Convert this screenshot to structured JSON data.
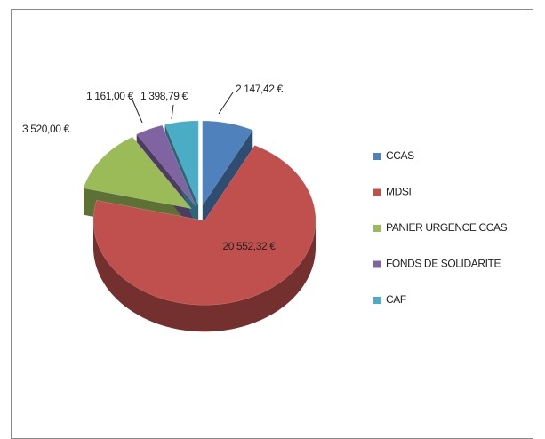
{
  "chart_data": {
    "type": "pie",
    "categories": [
      "CCAS",
      "MDSI",
      "PANIER URGENCE CCAS",
      "FONDS DE SOLIDARITE",
      "CAF"
    ],
    "values": [
      2147.42,
      20552.32,
      3520,
      1161,
      1398.79
    ],
    "value_labels": [
      "2 147,42 €",
      "20 552,32 €",
      "3 520,00 €",
      "1 161,00 €",
      "1 398,79 €"
    ],
    "colors": [
      "#4f81bd",
      "#c0504d",
      "#9bbb59",
      "#8064a2",
      "#4bacc6"
    ],
    "legend": "right"
  }
}
